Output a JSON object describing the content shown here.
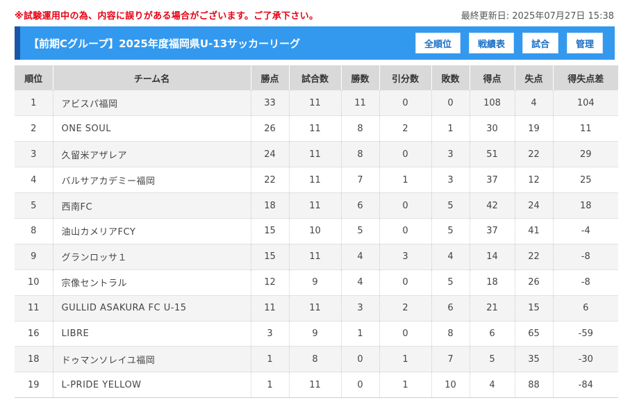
{
  "notice": "※試験運用中の為、内容に誤りがある場合がございます。ご了承下さい。",
  "updated": "最終更新日: 2025年07月27日 15:38",
  "header": {
    "title": "【前期Cグループ】2025年度福岡県U-13サッカーリーグ",
    "buttons": [
      "全順位",
      "戦績表",
      "試合",
      "管理"
    ]
  },
  "table": {
    "columns": [
      "順位",
      "チーム名",
      "勝点",
      "試合数",
      "勝数",
      "引分数",
      "敗数",
      "得点",
      "失点",
      "得失点差"
    ],
    "rows": [
      [
        "1",
        "アビスパ福岡",
        "33",
        "11",
        "11",
        "0",
        "0",
        "108",
        "4",
        "104"
      ],
      [
        "2",
        "ONE SOUL",
        "26",
        "11",
        "8",
        "2",
        "1",
        "30",
        "19",
        "11"
      ],
      [
        "3",
        "久留米アザレア",
        "24",
        "11",
        "8",
        "0",
        "3",
        "51",
        "22",
        "29"
      ],
      [
        "4",
        "バルサアカデミー福岡",
        "22",
        "11",
        "7",
        "1",
        "3",
        "37",
        "12",
        "25"
      ],
      [
        "5",
        "西南FC",
        "18",
        "11",
        "6",
        "0",
        "5",
        "42",
        "24",
        "18"
      ],
      [
        "8",
        "油山カメリアFCY",
        "15",
        "10",
        "5",
        "0",
        "5",
        "37",
        "41",
        "-4"
      ],
      [
        "9",
        "グランロッサ１",
        "15",
        "11",
        "4",
        "3",
        "4",
        "14",
        "22",
        "-8"
      ],
      [
        "10",
        "宗像セントラル",
        "12",
        "9",
        "4",
        "0",
        "5",
        "18",
        "26",
        "-8"
      ],
      [
        "11",
        "GULLID ASAKURA FC U-15",
        "11",
        "11",
        "3",
        "2",
        "6",
        "21",
        "15",
        "6"
      ],
      [
        "16",
        "LIBRE",
        "3",
        "9",
        "1",
        "0",
        "8",
        "6",
        "65",
        "-59"
      ],
      [
        "18",
        "ドゥマンソレイユ福岡",
        "1",
        "8",
        "0",
        "1",
        "7",
        "5",
        "35",
        "-30"
      ],
      [
        "19",
        "L-PRIDE YELLOW",
        "1",
        "11",
        "0",
        "1",
        "10",
        "4",
        "88",
        "-84"
      ]
    ]
  }
}
